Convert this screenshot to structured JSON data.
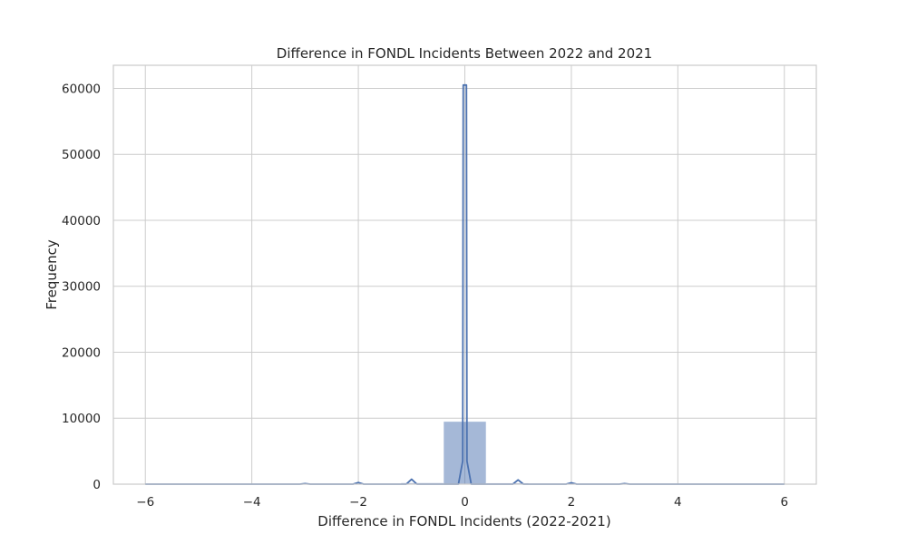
{
  "chart_data": {
    "type": "bar",
    "title": "Difference in FONDL Incidents Between 2022 and 2021",
    "xlabel": "Difference in FONDL Incidents (2022-2021)",
    "ylabel": "Frequency",
    "xlim": [
      -6.6,
      6.6
    ],
    "ylim": [
      0,
      63500
    ],
    "xticks": [
      -6,
      -4,
      -2,
      0,
      2,
      4,
      6
    ],
    "xtick_labels": [
      "−6",
      "−4",
      "−2",
      "0",
      "2",
      "4",
      "6"
    ],
    "yticks": [
      0,
      10000,
      20000,
      30000,
      40000,
      50000,
      60000
    ],
    "ytick_labels": [
      "0",
      "10000",
      "20000",
      "30000",
      "40000",
      "50000",
      "60000"
    ],
    "grid": true,
    "bins": {
      "edges": [
        -6,
        -5.2,
        -4.4,
        -3.6,
        -2.8,
        -2.0,
        -1.2,
        -0.4,
        0.4,
        1.2,
        2.0,
        2.8,
        3.6,
        4.4,
        5.2,
        6.0
      ],
      "values": [
        0,
        0,
        0,
        0,
        10,
        30,
        200,
        9500,
        180,
        25,
        8,
        3,
        1,
        0,
        0
      ]
    },
    "kde_series": {
      "x": [
        -6,
        -3.1,
        -3.0,
        -2.9,
        -2.1,
        -2.0,
        -1.9,
        -1.1,
        -1.0,
        -0.9,
        -0.12,
        -0.04,
        -0.03,
        0.03,
        0.04,
        0.12,
        0.9,
        1.0,
        1.1,
        1.9,
        2.0,
        2.1,
        2.9,
        3.0,
        3.1,
        6
      ],
      "y": [
        0,
        0,
        80,
        0,
        0,
        250,
        0,
        0,
        750,
        0,
        0,
        3500,
        60500,
        60500,
        3500,
        0,
        0,
        650,
        0,
        0,
        200,
        0,
        0,
        80,
        0,
        0
      ]
    },
    "color": "#4c72b0"
  }
}
